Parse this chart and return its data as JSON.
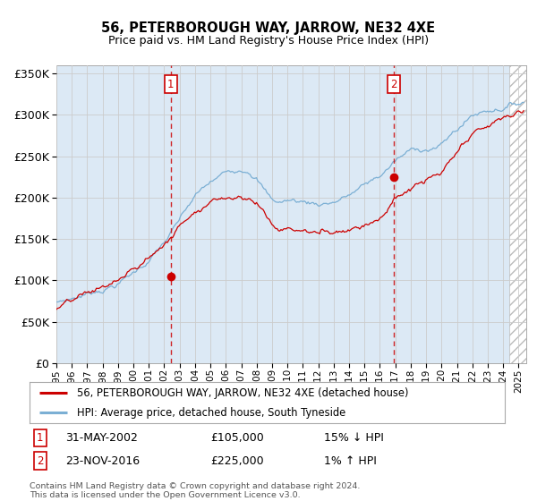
{
  "title": "56, PETERBOROUGH WAY, JARROW, NE32 4XE",
  "subtitle": "Price paid vs. HM Land Registry's House Price Index (HPI)",
  "legend_line1": "56, PETERBOROUGH WAY, JARROW, NE32 4XE (detached house)",
  "legend_line2": "HPI: Average price, detached house, South Tyneside",
  "annotation1_date": "31-MAY-2002",
  "annotation1_price": "£105,000",
  "annotation1_hpi": "15% ↓ HPI",
  "annotation2_date": "23-NOV-2016",
  "annotation2_price": "£225,000",
  "annotation2_hpi": "1% ↑ HPI",
  "footnote1": "Contains HM Land Registry data © Crown copyright and database right 2024.",
  "footnote2": "This data is licensed under the Open Government Licence v3.0.",
  "hpi_color": "#7bafd4",
  "price_color": "#cc0000",
  "bg_color": "#dce9f5",
  "white": "#ffffff",
  "grid_color": "#cccccc",
  "sale1_x": 2002.42,
  "sale1_y": 105000,
  "sale2_x": 2016.9,
  "sale2_y": 225000,
  "ylim": [
    0,
    360000
  ],
  "xlim_left": 1995.0,
  "xlim_right": 2025.5,
  "hatch_start": 2024.42
}
